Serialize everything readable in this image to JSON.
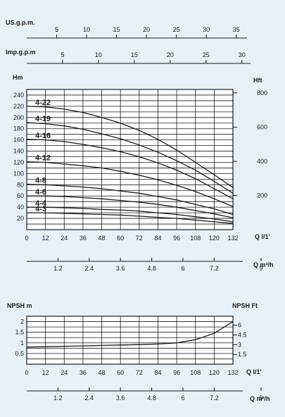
{
  "colors": {
    "background": "#e6f1f7",
    "grid_fill": "#ffffff",
    "line": "#1a1a1a"
  },
  "top_scales": {
    "usgpm": {
      "label": "US.g.p.m.",
      "ticks": [
        "5",
        "10",
        "15",
        "20",
        "25",
        "30",
        "35"
      ]
    },
    "impgpm": {
      "label": "Imp.g.p.m",
      "ticks": [
        "5",
        "10",
        "15",
        "20",
        "25",
        "30"
      ]
    }
  },
  "chart_data": [
    {
      "type": "line",
      "ylabel_left": "Hm",
      "ylabel_right": "Hft",
      "x_unit_ls": "Q l/1'",
      "x_unit_m3h": "Q m³/h",
      "x_ticks": [
        "0",
        "12",
        "24",
        "36",
        "48",
        "60",
        "72",
        "84",
        "96",
        "108",
        "120",
        "132"
      ],
      "x_ticks_m3h": [
        "1.2",
        "2.4",
        "3.6",
        "4.8",
        "6",
        "7.2",
        "9"
      ],
      "y_ticks_left": [
        "20",
        "40",
        "60",
        "80",
        "100",
        "120",
        "140",
        "160",
        "180",
        "200",
        "220",
        "240"
      ],
      "y_ticks_right": [
        "200",
        "400",
        "600",
        "800"
      ],
      "xlim": [
        0,
        132
      ],
      "ylim": [
        0,
        250
      ],
      "grid": true,
      "series": [
        {
          "name": "4-22",
          "x": [
            0,
            12,
            24,
            36,
            48,
            60,
            72,
            84,
            96,
            108,
            120,
            132
          ],
          "y": [
            220,
            219,
            215,
            209,
            200,
            190,
            177,
            161,
            142,
            120,
            98,
            75
          ]
        },
        {
          "name": "4-19",
          "x": [
            0,
            12,
            24,
            36,
            48,
            60,
            72,
            84,
            96,
            108,
            120,
            132
          ],
          "y": [
            191,
            189,
            185,
            179,
            171,
            162,
            151,
            138,
            123,
            106,
            86,
            65
          ]
        },
        {
          "name": "4-16",
          "x": [
            0,
            12,
            24,
            36,
            48,
            60,
            72,
            84,
            96,
            108,
            120,
            132
          ],
          "y": [
            161,
            160,
            157,
            152,
            146,
            139,
            130,
            119,
            106,
            91,
            73,
            55
          ]
        },
        {
          "name": "4-12",
          "x": [
            0,
            12,
            24,
            36,
            48,
            60,
            72,
            84,
            96,
            108,
            120,
            132
          ],
          "y": [
            121,
            120,
            117,
            114,
            110,
            104,
            97,
            89,
            79,
            68,
            55,
            41
          ]
        },
        {
          "name": "4-8",
          "x": [
            0,
            12,
            24,
            36,
            48,
            60,
            72,
            84,
            96,
            108,
            120,
            132
          ],
          "y": [
            81,
            80,
            78,
            76,
            73,
            69,
            65,
            59,
            53,
            45,
            37,
            27
          ]
        },
        {
          "name": "4-6",
          "x": [
            0,
            12,
            24,
            36,
            48,
            60,
            72,
            84,
            96,
            108,
            120,
            132
          ],
          "y": [
            60,
            60,
            59,
            57,
            55,
            52,
            49,
            45,
            40,
            34,
            28,
            21
          ]
        },
        {
          "name": "4-4",
          "x": [
            0,
            12,
            24,
            36,
            48,
            60,
            72,
            84,
            96,
            108,
            120,
            132
          ],
          "y": [
            40,
            40,
            39,
            38,
            36,
            35,
            33,
            30,
            27,
            23,
            19,
            14
          ]
        },
        {
          "name": "4-3",
          "x": [
            0,
            12,
            24,
            36,
            48,
            60,
            72,
            84,
            96,
            108,
            120,
            132
          ],
          "y": [
            30,
            30,
            29,
            28,
            27,
            26,
            24,
            22,
            20,
            17,
            14,
            11
          ]
        }
      ]
    },
    {
      "type": "line",
      "ylabel_left": "NPSH m",
      "ylabel_right": "NPSH  Ft",
      "x_unit_ls": "Q l/1'",
      "x_unit_m3h": "Q m³/h",
      "x_ticks": [
        "0",
        "12",
        "24",
        "36",
        "48",
        "60",
        "72",
        "84",
        "96",
        "108",
        "120",
        "132"
      ],
      "x_ticks_m3h": [
        "1.2",
        "2.4",
        "3.6",
        "4.8",
        "6",
        "7.2",
        "9"
      ],
      "y_ticks_left": [
        "0.5",
        "1",
        "1.5",
        "2"
      ],
      "y_ticks_right": [
        "1.5",
        "3",
        "4.5",
        "6"
      ],
      "xlim": [
        0,
        132
      ],
      "ylim": [
        0,
        2.25
      ],
      "grid": true,
      "series": [
        {
          "x": [
            0,
            12,
            24,
            36,
            48,
            60,
            72,
            84,
            96,
            108,
            120,
            132
          ],
          "y": [
            0.8,
            0.82,
            0.84,
            0.86,
            0.88,
            0.9,
            0.92,
            0.95,
            1.0,
            1.15,
            1.45,
            2.0
          ]
        }
      ]
    }
  ]
}
